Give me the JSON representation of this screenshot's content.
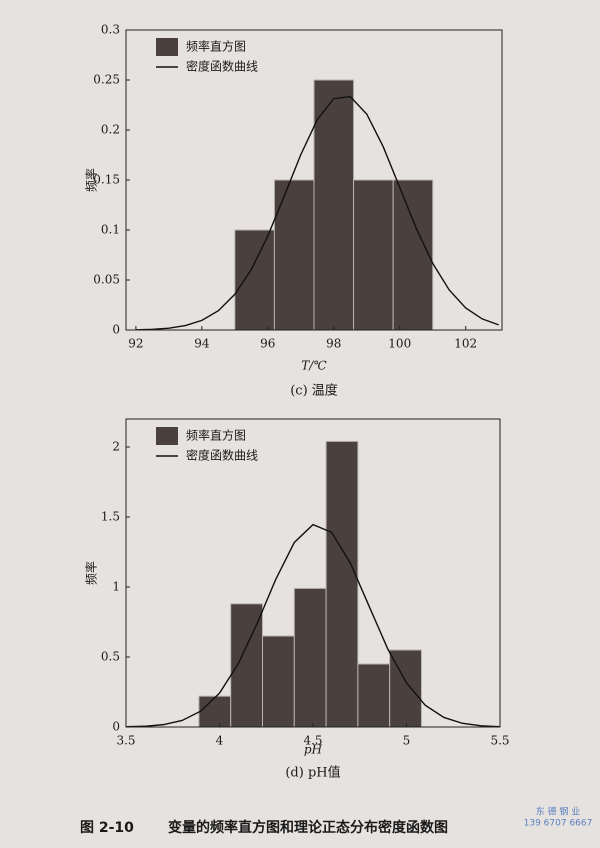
{
  "chart_data": [
    {
      "type": "histogram",
      "ylabel": "频率",
      "xlabel": "T/℃",
      "caption": "(c) 温度",
      "xlim": [
        91.7,
        103.1
      ],
      "xticks": [
        92,
        94,
        96,
        98,
        100,
        102
      ],
      "ylim": [
        0,
        0.3
      ],
      "yticks": [
        0,
        0.05,
        0.1,
        0.15,
        0.2,
        0.25,
        0.3
      ],
      "legend": "upper left",
      "series": [
        {
          "name": "频率直方图",
          "type": "histogram",
          "color": "#4a403d",
          "bins": [
            95,
            96.2,
            97.4,
            98.6,
            99.8,
            101
          ],
          "values": [
            0.1,
            0.15,
            0.25,
            0.15,
            0.15
          ]
        },
        {
          "name": "密度函数曲线",
          "type": "line",
          "color": "#111111",
          "x": [
            92,
            92.5,
            93,
            93.5,
            94,
            94.5,
            95,
            95.5,
            96,
            96.5,
            97,
            97.5,
            98,
            98.5,
            99,
            99.5,
            100,
            100.5,
            101,
            101.5,
            102,
            102.5,
            103
          ],
          "values": [
            0.0002,
            0.0007,
            0.0018,
            0.0044,
            0.0096,
            0.0193,
            0.0357,
            0.0605,
            0.0941,
            0.1342,
            0.1754,
            0.2104,
            0.2314,
            0.2334,
            0.2159,
            0.1832,
            0.1425,
            0.1017,
            0.0666,
            0.04,
            0.022,
            0.0111,
            0.0051
          ]
        }
      ]
    },
    {
      "type": "histogram",
      "ylabel": "频率",
      "xlabel": "pH",
      "caption": "(d) pH值",
      "xlim": [
        3.5,
        5.5
      ],
      "xticks": [
        3.5,
        4,
        4.5,
        5,
        5.5
      ],
      "ylim": [
        0,
        2.2
      ],
      "yticks": [
        0,
        0.5,
        1,
        1.5,
        2
      ],
      "legend": "upper left",
      "series": [
        {
          "name": "频率直方图",
          "type": "histogram",
          "color": "#4a403d",
          "bins": [
            3.89,
            4.06,
            4.23,
            4.4,
            4.57,
            4.74,
            4.91,
            5.08
          ],
          "values": [
            0.22,
            0.88,
            0.65,
            0.99,
            2.04,
            0.45,
            0.55
          ]
        },
        {
          "name": "密度函数曲线",
          "type": "line",
          "color": "#111111",
          "x": [
            3.5,
            3.6,
            3.7,
            3.8,
            3.9,
            4.0,
            4.1,
            4.2,
            4.3,
            4.4,
            4.5,
            4.6,
            4.7,
            4.8,
            4.9,
            5.0,
            5.1,
            5.2,
            5.3,
            5.4,
            5.5
          ],
          "values": [
            0.0015,
            0.0053,
            0.0169,
            0.0468,
            0.1137,
            0.2419,
            0.451,
            0.736,
            1.052,
            1.318,
            1.446,
            1.39,
            1.17,
            0.863,
            0.557,
            0.315,
            0.156,
            0.068,
            0.026,
            0.0086,
            0.0025
          ]
        }
      ]
    }
  ],
  "figure_caption": {
    "number": "图 2-10",
    "text": "变量的频率直方图和理论正态分布密度函数图"
  },
  "watermark": [
    "东 德 钢 业",
    "139 6707 6667"
  ]
}
